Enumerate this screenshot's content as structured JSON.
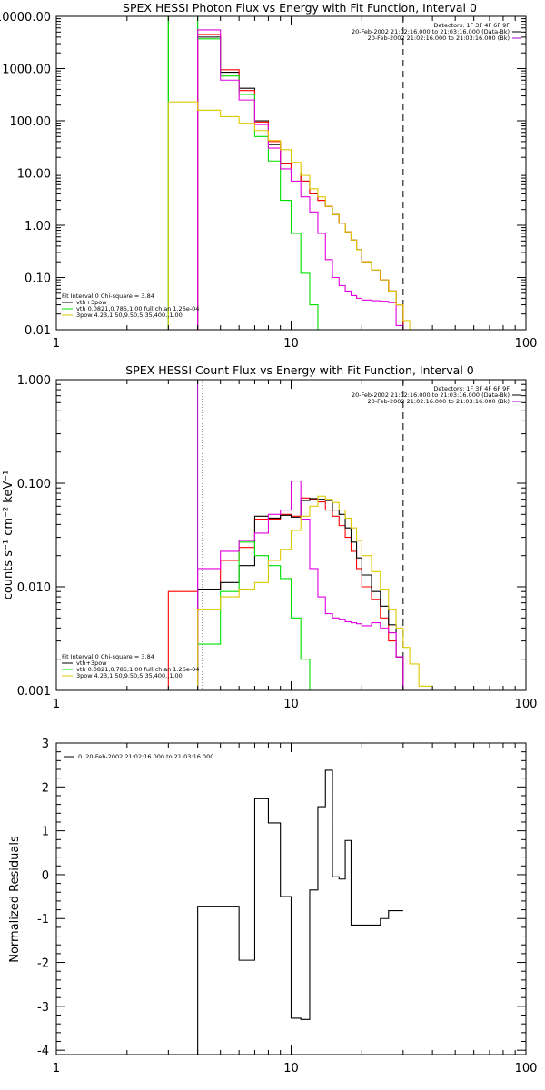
{
  "colors": {
    "black": "#000000",
    "red": "#ff0000",
    "green": "#00e000",
    "magenta": "#e000e0",
    "yellow": "#e0c800",
    "purple": "#a000c0"
  },
  "chart_data": [
    {
      "type": "line",
      "title": "SPEX HESSI Photon Flux vs Energy with Fit Function, Interval 0",
      "xscale": "log",
      "yscale": "log",
      "xlim": [
        1,
        100
      ],
      "ylim": [
        0.01,
        10000
      ],
      "x_tick_labels": [
        "1",
        "10",
        "100"
      ],
      "y_tick_labels": [
        "0.01",
        "0.10",
        "1.00",
        "10.00",
        "100.00",
        "1000.00",
        "10000.00"
      ],
      "detector_lines": [
        "Detectors: 1F 3F 4F 6F 9F",
        "20-Feb-2002 21:02:16.000 to 21:03:16.000 (Data-Bk)",
        "20-Feb-2002 21:02:16.000 to 21:03:16.000 (Bk)"
      ],
      "fit_lines": [
        "Fit Interval 0   Chi-square = 3.84",
        "vth+3pow",
        "vth 0.0821,0.785,1.00  full chian 1.26e-04",
        "3pow 4.23,1.50,9.50,5.35,400.,1.00"
      ],
      "dashed_x": 30,
      "vline_green_x": 3,
      "vline_magenta_x": 4,
      "series": [
        {
          "name": "",
          "color_key": "black",
          "edges": [
            4,
            5,
            6,
            7,
            8,
            9,
            10,
            11,
            12,
            13,
            14,
            15,
            16,
            17,
            18,
            19,
            20,
            22,
            24,
            26,
            28,
            30
          ],
          "values": [
            4000,
            850,
            420,
            100,
            35,
            15,
            10,
            7,
            4,
            3,
            2.3,
            1.6,
            1.1,
            0.75,
            0.52,
            0.34,
            0.2,
            0.14,
            0.09,
            0.055,
            0.03
          ]
        },
        {
          "name": "",
          "color_key": "red",
          "edges": [
            4,
            5,
            6,
            7,
            8,
            9,
            10,
            11,
            12,
            13,
            14,
            15,
            16,
            17,
            18,
            19,
            20,
            22,
            24,
            26,
            28,
            30
          ],
          "values": [
            4500,
            950,
            380,
            95,
            40,
            15,
            10,
            7,
            4,
            3,
            2.3,
            1.6,
            1.1,
            0.75,
            0.52,
            0.34,
            0.2,
            0.14,
            0.09,
            0.055,
            0.03
          ]
        },
        {
          "name": "",
          "color_key": "green",
          "edges": [
            3,
            4,
            5,
            6,
            7,
            8,
            9,
            10,
            11,
            12,
            13,
            14
          ],
          "values": [
            10000,
            3700,
            720,
            320,
            50,
            17,
            3,
            0.7,
            0.12,
            0.03,
            0.01
          ]
        },
        {
          "name": "",
          "color_key": "magenta",
          "edges": [
            4,
            5,
            6,
            7,
            8,
            9,
            10,
            11,
            12,
            13,
            14,
            15,
            16,
            17,
            18,
            19,
            20,
            22,
            24,
            26,
            28,
            30
          ],
          "values": [
            5500,
            600,
            250,
            85,
            30,
            12,
            7,
            3.5,
            1.8,
            0.7,
            0.22,
            0.1,
            0.07,
            0.055,
            0.045,
            0.04,
            0.037,
            0.036,
            0.035,
            0.033,
            0.012
          ]
        },
        {
          "name": "",
          "color_key": "yellow",
          "edges": [
            3,
            4,
            5,
            6,
            7,
            8,
            9,
            10,
            11,
            12,
            13,
            14,
            15,
            16,
            17,
            18,
            19,
            20,
            22,
            24,
            26,
            28,
            30,
            32,
            35
          ],
          "values": [
            230,
            160,
            120,
            90,
            65,
            42,
            28,
            16,
            9,
            5,
            3.5,
            2.3,
            1.6,
            1.1,
            0.75,
            0.52,
            0.34,
            0.2,
            0.14,
            0.09,
            0.055,
            0.03,
            0.015,
            0.01
          ]
        }
      ]
    },
    {
      "type": "line",
      "title": "SPEX HESSI Count Flux vs Energy with Fit Function, Interval 0",
      "ylabel": "counts s⁻¹ cm⁻² keV⁻¹",
      "xscale": "log",
      "yscale": "log",
      "xlim": [
        1,
        100
      ],
      "ylim": [
        0.001,
        1
      ],
      "x_tick_labels": [
        "1",
        "10",
        "100"
      ],
      "y_tick_labels": [
        "0.001",
        "0.010",
        "0.100",
        "1.000"
      ],
      "detector_lines": [
        "Detectors: 1F 3F 4F 6F 9F",
        "20-Feb-2002 21:02:16.000 to 21:03:16.000 (Data-Bk)",
        "20-Feb-2002 21:02:16.000 to 21:03:16.000 (Bk)"
      ],
      "fit_lines": [
        "Fit Interval 0   Chi-square = 3.84",
        "vth+3pow",
        "vth 0.0821,0.785,1.00  full chian 1.26e-04",
        "3pow 4.23,1.50,9.50,5.35,400.,1.00"
      ],
      "dashed_x": 30,
      "dotted_x": 4.2,
      "vline_magenta_x": 4,
      "series": [
        {
          "name": "",
          "color_key": "red",
          "edges": [
            3,
            4,
            5,
            6,
            7,
            8,
            9,
            10,
            11,
            12,
            13,
            14,
            15,
            16,
            17,
            18,
            19,
            20,
            22,
            24,
            26,
            28,
            30
          ],
          "values": [
            0.009,
            0.0095,
            0.018,
            0.024,
            0.045,
            0.045,
            0.05,
            0.048,
            0.072,
            0.07,
            0.066,
            0.055,
            0.048,
            0.039,
            0.03,
            0.022,
            0.015,
            0.01,
            0.0075,
            0.005,
            0.003,
            0.0021
          ]
        },
        {
          "name": "",
          "color_key": "black",
          "edges": [
            4,
            5,
            6,
            7,
            8,
            9,
            10,
            11,
            12,
            13,
            14,
            15,
            16,
            17,
            18,
            19,
            20,
            22,
            24,
            26,
            28,
            30
          ],
          "values": [
            0.0095,
            0.011,
            0.016,
            0.048,
            0.046,
            0.049,
            0.047,
            0.068,
            0.071,
            0.07,
            0.068,
            0.055,
            0.05,
            0.037,
            0.027,
            0.019,
            0.013,
            0.009,
            0.0065,
            0.0043,
            0.0021
          ]
        },
        {
          "name": "",
          "color_key": "green",
          "edges": [
            4,
            5,
            6,
            7,
            8,
            9,
            10,
            11,
            12
          ],
          "values": [
            0.0028,
            0.009,
            0.027,
            0.02,
            0.016,
            0.012,
            0.005,
            0.002
          ]
        },
        {
          "name": "",
          "color_key": "magenta",
          "edges": [
            4,
            5,
            6,
            7,
            8,
            9,
            10,
            11,
            12,
            13,
            14,
            15,
            16,
            17,
            18,
            19,
            20,
            22,
            24,
            26,
            28,
            30
          ],
          "values": [
            0.015,
            0.022,
            0.028,
            0.033,
            0.05,
            0.055,
            0.105,
            0.045,
            0.015,
            0.008,
            0.0055,
            0.005,
            0.0048,
            0.0046,
            0.0045,
            0.0044,
            0.0042,
            0.0045,
            0.004,
            0.0036,
            0.0021
          ]
        },
        {
          "name": "",
          "color_key": "yellow",
          "edges": [
            3,
            4,
            5,
            6,
            7,
            8,
            9,
            10,
            11,
            12,
            13,
            14,
            15,
            16,
            17,
            18,
            19,
            20,
            22,
            24,
            26,
            28,
            30,
            32,
            35,
            40
          ],
          "values": [
            0.001,
            0.006,
            0.008,
            0.0095,
            0.011,
            0.018,
            0.023,
            0.035,
            0.048,
            0.06,
            0.075,
            0.07,
            0.065,
            0.055,
            0.046,
            0.037,
            0.028,
            0.02,
            0.014,
            0.0095,
            0.006,
            0.004,
            0.0026,
            0.0018,
            0.0011
          ]
        }
      ]
    },
    {
      "type": "line",
      "title": "",
      "ylabel": "Normalized Residuals",
      "xscale": "log",
      "yscale": "linear",
      "xlim": [
        1,
        100
      ],
      "ylim": [
        -4.1,
        3
      ],
      "x_tick_labels": [
        "1",
        "10",
        "100"
      ],
      "y_tick_labels": [
        "-4",
        "-3",
        "-2",
        "-1",
        "0",
        "1",
        "2",
        "3"
      ],
      "legend_text": "0. 20-Feb-2002 21:02:16.000 to 21:03:16.000",
      "series": [
        {
          "name": "",
          "color_key": "black",
          "edges": [
            4,
            5,
            6,
            7,
            8,
            9,
            10,
            11,
            12,
            13,
            14,
            15,
            16,
            17,
            18,
            19,
            20,
            22,
            24,
            26,
            28,
            30
          ],
          "values": [
            -0.72,
            -0.72,
            -1.95,
            1.73,
            1.18,
            -0.5,
            -3.27,
            -3.3,
            -0.35,
            1.55,
            2.38,
            -0.05,
            -0.1,
            0.78,
            -1.15,
            -1.15,
            -1.15,
            -1.15,
            -1.0,
            -0.82,
            -0.82
          ],
          "start_value": -4.1
        }
      ]
    }
  ]
}
